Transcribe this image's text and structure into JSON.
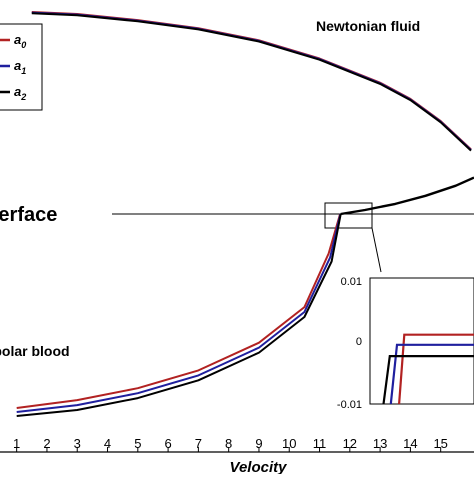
{
  "chart_data": {
    "type": "line",
    "xlabel": "Velocity",
    "x_ticks": [
      1,
      2,
      3,
      4,
      5,
      6,
      7,
      8,
      9,
      10,
      11,
      12,
      13,
      14,
      15
    ],
    "xlim": [
      0.45,
      16.1
    ],
    "legend": {
      "placement": "top-left",
      "entries": [
        {
          "name": "a",
          "sub": "0",
          "color": "#b22222"
        },
        {
          "name": "a",
          "sub": "1",
          "color": "#1f1f9e"
        },
        {
          "name": "a",
          "sub": "2",
          "color": "#000000"
        }
      ]
    },
    "annotations": {
      "newtonian": "Newtonian fluid",
      "interface": "Interface",
      "micropolar": "Micropolar blood"
    },
    "interface_y": 0,
    "newtonian_series": [
      {
        "name": "a0",
        "color": "#b22222",
        "points": [
          [
            1.5,
            1.0
          ],
          [
            3,
            0.99
          ],
          [
            5,
            0.96
          ],
          [
            7,
            0.92
          ],
          [
            9,
            0.86
          ],
          [
            11,
            0.77
          ],
          [
            13,
            0.65
          ],
          [
            14,
            0.57
          ],
          [
            15,
            0.46
          ],
          [
            16,
            0.32
          ]
        ]
      },
      {
        "name": "a1",
        "color": "#1f1f9e",
        "points": [
          [
            1.5,
            0.997
          ],
          [
            3,
            0.987
          ],
          [
            5,
            0.957
          ],
          [
            7,
            0.917
          ],
          [
            9,
            0.857
          ],
          [
            11,
            0.767
          ],
          [
            13,
            0.647
          ],
          [
            14,
            0.567
          ],
          [
            15,
            0.457
          ],
          [
            16,
            0.317
          ]
        ]
      },
      {
        "name": "a2",
        "color": "#000000",
        "points": [
          [
            1.5,
            0.994
          ],
          [
            3,
            0.984
          ],
          [
            5,
            0.954
          ],
          [
            7,
            0.914
          ],
          [
            9,
            0.854
          ],
          [
            11,
            0.764
          ],
          [
            13,
            0.644
          ],
          [
            14,
            0.564
          ],
          [
            15,
            0.454
          ],
          [
            16,
            0.314
          ]
        ]
      }
    ],
    "shared_upper_curve": [
      [
        11.7,
        0.0
      ],
      [
        12.5,
        0.02
      ],
      [
        13.5,
        0.05
      ],
      [
        14.5,
        0.09
      ],
      [
        15.5,
        0.14
      ],
      [
        16.1,
        0.18
      ]
    ],
    "micropolar_series": [
      {
        "name": "a0",
        "color": "#b22222",
        "points": [
          [
            1,
            -0.98
          ],
          [
            3,
            -0.94
          ],
          [
            5,
            -0.88
          ],
          [
            7,
            -0.79
          ],
          [
            9,
            -0.65
          ],
          [
            10.5,
            -0.47
          ],
          [
            11.3,
            -0.2
          ],
          [
            11.68,
            0.0
          ]
        ]
      },
      {
        "name": "a1",
        "color": "#1f1f9e",
        "points": [
          [
            1,
            -1.0
          ],
          [
            3,
            -0.965
          ],
          [
            5,
            -0.905
          ],
          [
            7,
            -0.815
          ],
          [
            9,
            -0.675
          ],
          [
            10.5,
            -0.495
          ],
          [
            11.35,
            -0.22
          ],
          [
            11.69,
            0.0
          ]
        ]
      },
      {
        "name": "a2",
        "color": "#000000",
        "points": [
          [
            1,
            -1.02
          ],
          [
            3,
            -0.99
          ],
          [
            5,
            -0.93
          ],
          [
            7,
            -0.84
          ],
          [
            9,
            -0.7
          ],
          [
            10.5,
            -0.52
          ],
          [
            11.4,
            -0.24
          ],
          [
            11.7,
            0.0
          ]
        ]
      }
    ],
    "inset": {
      "y_ticks": [
        "0.01",
        "0",
        "-0.01"
      ],
      "lines": [
        {
          "name": "a0",
          "color": "#b22222",
          "points": [
            [
              0.28,
              0.0
            ],
            [
              0.33,
              0.55
            ],
            [
              1.0,
              0.55
            ]
          ]
        },
        {
          "name": "a1",
          "color": "#1f1f9e",
          "points": [
            [
              0.2,
              0.0
            ],
            [
              0.26,
              0.47
            ],
            [
              1.0,
              0.47
            ]
          ]
        },
        {
          "name": "a2",
          "color": "#000000",
          "points": [
            [
              0.13,
              0.0
            ],
            [
              0.19,
              0.38
            ],
            [
              1.0,
              0.38
            ]
          ]
        }
      ]
    }
  }
}
